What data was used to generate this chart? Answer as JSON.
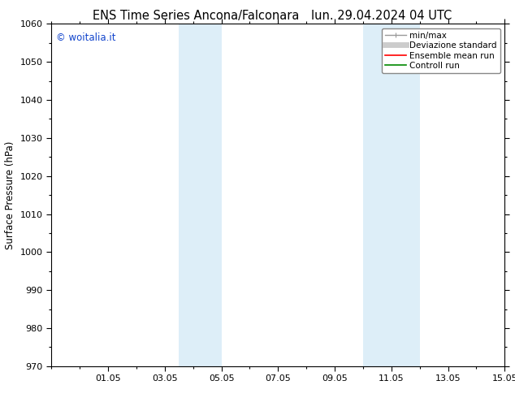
{
  "title_left": "ENS Time Series Ancona/Falconara",
  "title_right": "lun. 29.04.2024 04 UTC",
  "ylabel": "Surface Pressure (hPa)",
  "ylim": [
    970,
    1060
  ],
  "yticks": [
    970,
    980,
    990,
    1000,
    1010,
    1020,
    1030,
    1040,
    1050,
    1060
  ],
  "xtick_labels": [
    "01.05",
    "03.05",
    "05.05",
    "07.05",
    "09.05",
    "11.05",
    "13.05",
    "15.05"
  ],
  "xtick_positions": [
    2,
    4,
    6,
    8,
    10,
    12,
    14,
    16
  ],
  "shade_bands": [
    {
      "x_start": 4.5,
      "x_end": 6.0,
      "color": "#ddeef8"
    },
    {
      "x_start": 11.0,
      "x_end": 13.0,
      "color": "#ddeef8"
    }
  ],
  "watermark": "© woitalia.it",
  "watermark_color": "#1144cc",
  "legend_items": [
    {
      "label": "min/max",
      "color": "#999999",
      "lw": 1.0
    },
    {
      "label": "Deviazione standard",
      "color": "#cccccc",
      "lw": 5.0
    },
    {
      "label": "Ensemble mean run",
      "color": "#ff0000",
      "lw": 1.2
    },
    {
      "label": "Controll run",
      "color": "#008800",
      "lw": 1.2
    }
  ],
  "bg_color": "#ffffff",
  "plot_bg_color": "#ffffff",
  "title_fontsize": 10.5,
  "tick_fontsize": 8,
  "ylabel_fontsize": 8.5,
  "watermark_fontsize": 8.5,
  "legend_fontsize": 7.5
}
